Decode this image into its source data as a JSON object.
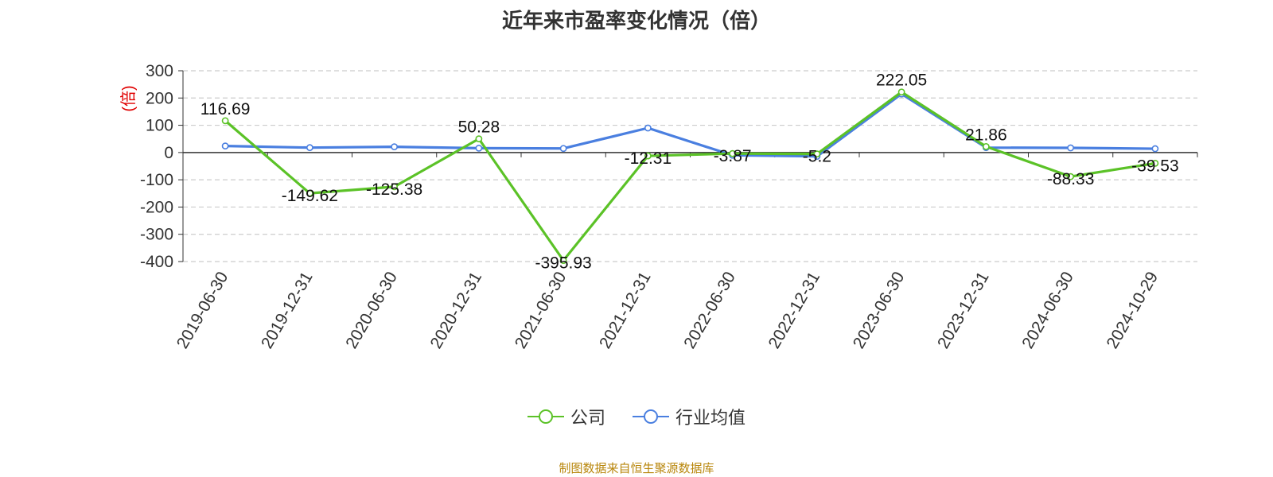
{
  "chart_data": {
    "type": "line",
    "title": "近年来市盈率变化情况（倍）",
    "ylabel": "(倍)",
    "xlabel": "",
    "ylim": [
      -400,
      300
    ],
    "yticks": [
      -400,
      -300,
      -200,
      -100,
      0,
      100,
      200,
      300
    ],
    "grid": true,
    "legend_position": "bottom-center",
    "categories": [
      "2019-06-30",
      "2019-12-31",
      "2020-06-30",
      "2020-12-31",
      "2021-06-30",
      "2021-12-31",
      "2022-06-30",
      "2022-12-31",
      "2023-06-30",
      "2023-12-31",
      "2024-06-30",
      "2024-10-29"
    ],
    "series": [
      {
        "name": "公司",
        "color": "#5bc227",
        "values": [
          116.69,
          -149.62,
          -125.38,
          50.28,
          -395.93,
          -12.31,
          -3.87,
          -5.2,
          222.05,
          21.86,
          -88.33,
          -39.53
        ],
        "labels": [
          "116.69",
          "-149.62",
          "-125.38",
          "50.28",
          "-395.93",
          "-12.31",
          "-3.87",
          "-5.2",
          "222.05",
          "21.86",
          "-88.33",
          "-39.53"
        ]
      },
      {
        "name": "行业均值",
        "color": "#4a7fe0",
        "values": [
          24,
          18,
          21,
          16,
          15,
          90,
          -10,
          -14,
          215,
          18,
          17,
          14
        ]
      }
    ]
  },
  "source_note": "制图数据来自恒生聚源数据库"
}
